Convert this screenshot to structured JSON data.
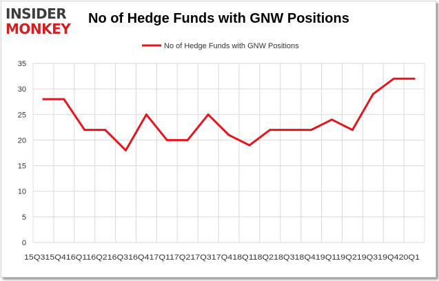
{
  "logo": {
    "line1": "INSIDER",
    "line2": "MONKEY"
  },
  "chart_data": {
    "type": "line",
    "title": "No of Hedge Funds with GNW Positions",
    "xlabel": "",
    "ylabel": "",
    "categories": [
      "2015Q3",
      "2015Q4",
      "2016Q1",
      "2016Q2",
      "2016Q3",
      "2016Q4",
      "2017Q1",
      "2017Q2",
      "2017Q3",
      "2017Q4",
      "2018Q1",
      "2018Q2",
      "2018Q3",
      "2018Q4",
      "2019Q1",
      "2019Q2",
      "2019Q3",
      "2019Q4",
      "2020Q1"
    ],
    "x_axis_text": "15Q315Q416Q116Q216Q316Q417Q117Q217Q317Q418Q118Q218Q318Q419Q119Q219Q319Q420Q1",
    "series": [
      {
        "name": "No of Hedge Funds with GNW  Positions",
        "color": "#e8141b",
        "values": [
          28,
          28,
          22,
          22,
          18,
          25,
          20,
          20,
          25,
          21,
          19,
          22,
          22,
          22,
          24,
          22,
          29,
          32,
          32
        ]
      }
    ],
    "ylim": [
      0,
      35
    ],
    "yticks": [
      0,
      5,
      10,
      15,
      20,
      25,
      30,
      35
    ],
    "grid": true,
    "legend": "top-center"
  }
}
